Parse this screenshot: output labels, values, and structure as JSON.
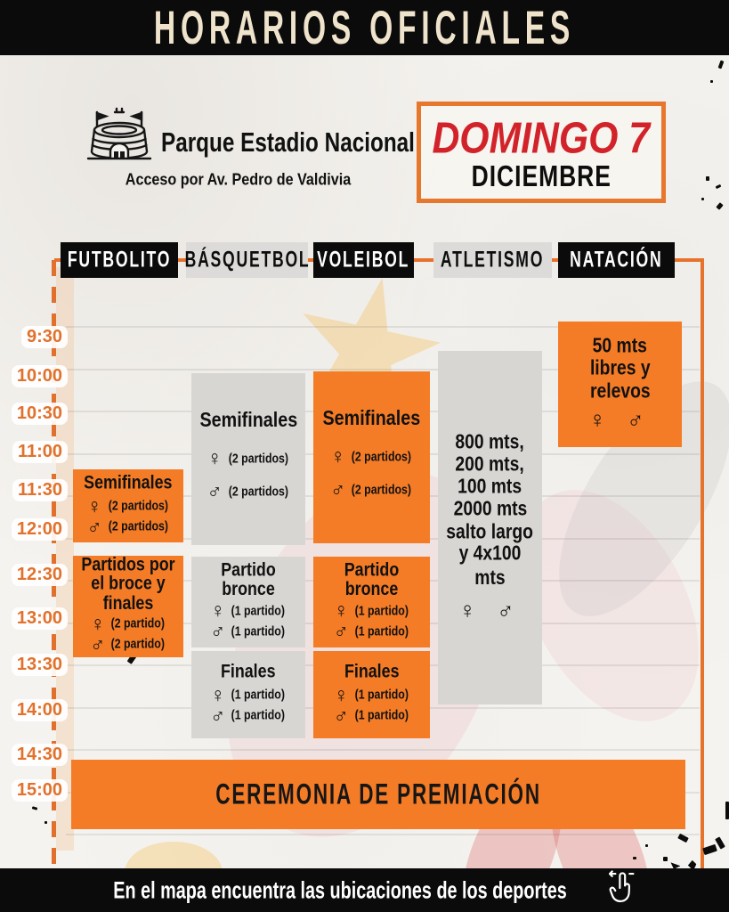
{
  "header": {
    "title": "HORARIOS OFICIALES"
  },
  "venue": {
    "name": "Parque Estadio Nacional",
    "access": "Acceso por Av. Pedro de Valdivia",
    "icon": "stadium-icon"
  },
  "date": {
    "day": "DOMINGO 7",
    "month": "DICIEMBRE"
  },
  "columns": [
    {
      "label": "FUTBOLITO",
      "style": "black"
    },
    {
      "label": "BÁSQUETBOL",
      "style": "gray"
    },
    {
      "label": "VOLEIBOL",
      "style": "black"
    },
    {
      "label": "ATLETISMO",
      "style": "gray"
    },
    {
      "label": "NATACIÓN",
      "style": "black"
    }
  ],
  "times": [
    "9:30",
    "10:00",
    "10:30",
    "11:00",
    "11:30",
    "12:00",
    "12:30",
    "13:00",
    "13:30",
    "14:00",
    "14:30",
    "15:00"
  ],
  "schedule": {
    "events": [
      {
        "sport": "futbolito",
        "title": "Semifinales",
        "rows": [
          {
            "symbol": "♀",
            "label": "(2 partidos)"
          },
          {
            "symbol": "♂",
            "label": "(2 partidos)"
          }
        ]
      },
      {
        "sport": "futbolito",
        "title": "Partidos por el broce y finales",
        "rows": [
          {
            "symbol": "♀",
            "label": "(2 partido)"
          },
          {
            "symbol": "♂",
            "label": "(2 partido)"
          }
        ]
      },
      {
        "sport": "basquetbol",
        "title": "Semifinales",
        "rows": [
          {
            "symbol": "♀",
            "label": "(2 partidos)"
          },
          {
            "symbol": "♂",
            "label": "(2 partidos)"
          }
        ]
      },
      {
        "sport": "basquetbol",
        "title": "Partido bronce",
        "rows": [
          {
            "symbol": "♀",
            "label": "(1 partido)"
          },
          {
            "symbol": "♂",
            "label": "(1 partido)"
          }
        ]
      },
      {
        "sport": "basquetbol",
        "title": "Finales",
        "rows": [
          {
            "symbol": "♀",
            "label": "(1 partido)"
          },
          {
            "symbol": "♂",
            "label": "(1 partido)"
          }
        ]
      },
      {
        "sport": "voleibol",
        "title": "Semifinales",
        "rows": [
          {
            "symbol": "♀",
            "label": "(2 partidos)"
          },
          {
            "symbol": "♂",
            "label": "(2 partidos)"
          }
        ]
      },
      {
        "sport": "voleibol",
        "title": "Partido bronce",
        "rows": [
          {
            "symbol": "♀",
            "label": "(1 partido)"
          },
          {
            "symbol": "♂",
            "label": "(1 partido)"
          }
        ]
      },
      {
        "sport": "voleibol",
        "title": "Finales",
        "rows": [
          {
            "symbol": "♀",
            "label": "(1 partido)"
          },
          {
            "symbol": "♂",
            "label": "(1 partido)"
          }
        ]
      },
      {
        "sport": "atletismo",
        "lines": [
          "800 mts,",
          "200 mts,",
          "100 mts",
          "2000 mts",
          "salto largo",
          "y 4x100 mts"
        ],
        "symbols": "♀ ♂"
      },
      {
        "sport": "natacion",
        "lines": [
          "50 mts",
          "libres y",
          "relevos"
        ],
        "symbols": "♀ ♂"
      }
    ],
    "ceremony": "CEREMONIA DE PREMIACIÓN"
  },
  "footer": {
    "text": "En el mapa encuentra las ubicaciones de los deportes",
    "icon": "tap-hand-icon"
  },
  "colors": {
    "accent_orange": "#F57C26",
    "line_orange": "#E6722C",
    "time_orange": "#E1712B",
    "date_red": "#D2232A",
    "block_gray": "#D8D6D3",
    "cream": "#EFE3CC",
    "black": "#0B0B0B"
  }
}
